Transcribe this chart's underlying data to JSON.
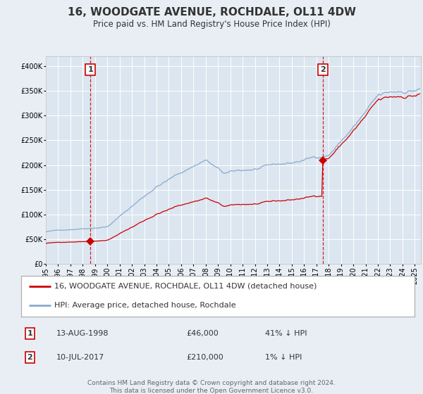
{
  "title": "16, WOODGATE AVENUE, ROCHDALE, OL11 4DW",
  "subtitle": "Price paid vs. HM Land Registry's House Price Index (HPI)",
  "bg_color": "#e8eef4",
  "plot_bg_color": "#dce6f0",
  "grid_color": "#ffffff",
  "red_line_color": "#cc0000",
  "blue_line_color": "#88aacc",
  "sale1_date_num": 1998.617,
  "sale1_price": 46000,
  "sale1_label": "13-AUG-1998",
  "sale1_pct": "41%",
  "sale2_date_num": 2017.527,
  "sale2_price": 210000,
  "sale2_label": "10-JUL-2017",
  "sale2_pct": "1%",
  "legend_red": "16, WOODGATE AVENUE, ROCHDALE, OL11 4DW (detached house)",
  "legend_blue": "HPI: Average price, detached house, Rochdale",
  "footer1": "Contains HM Land Registry data © Crown copyright and database right 2024.",
  "footer2": "This data is licensed under the Open Government Licence v3.0.",
  "xmin": 1995.0,
  "xmax": 2025.5,
  "ymin": 0,
  "ymax": 420000,
  "title_fontsize": 11,
  "subtitle_fontsize": 8.5,
  "tick_fontsize": 7,
  "legend_fontsize": 8,
  "table_fontsize": 8,
  "footer_fontsize": 6.5
}
